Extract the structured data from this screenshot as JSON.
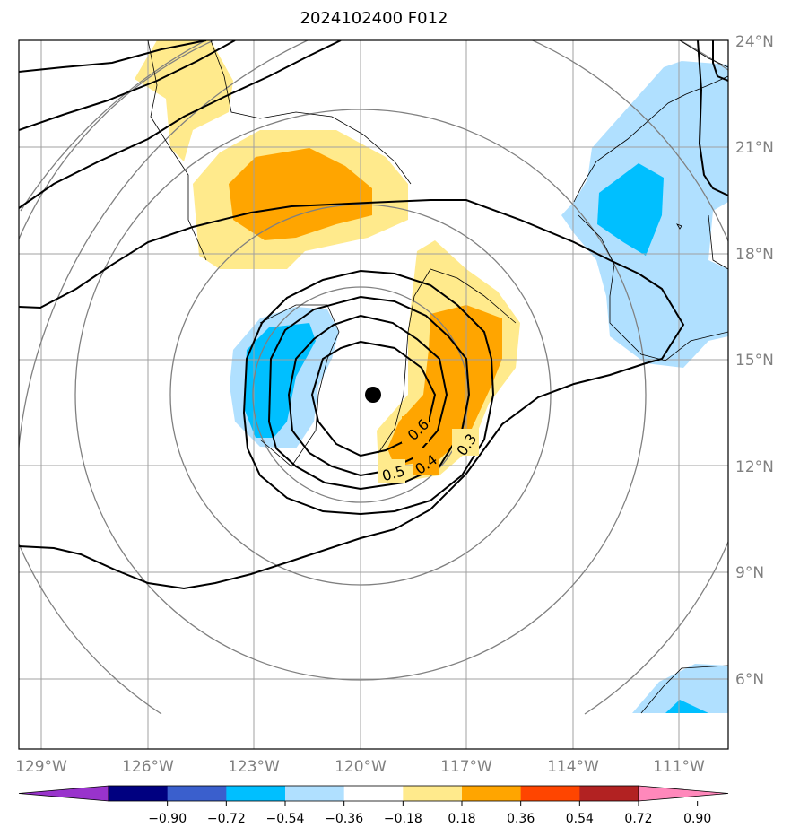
{
  "title": "2024102400 F012",
  "map": {
    "lon_labels": [
      "129°W",
      "126°W",
      "123°W",
      "120°W",
      "117°W",
      "114°W",
      "111°W"
    ],
    "lat_labels": [
      "24°N",
      "21°N",
      "18°N",
      "15°N",
      "12°N",
      "9°N",
      "6°N"
    ],
    "contour_labels": [
      "0.6",
      "0.5",
      "0.4",
      "0.3"
    ]
  },
  "colorbar": {
    "tick_labels": [
      "−0.90",
      "−0.72",
      "−0.54",
      "−0.36",
      "−0.18",
      "0.18",
      "0.36",
      "0.54",
      "0.72",
      "0.90"
    ],
    "colors": [
      "#9933cc",
      "#000080",
      "#3a5fcd",
      "#00bfff",
      "#b0e0ff",
      "#ffffff",
      "#ffea8c",
      "#ffa500",
      "#ff4500",
      "#b22222",
      "#ff88bb"
    ]
  }
}
